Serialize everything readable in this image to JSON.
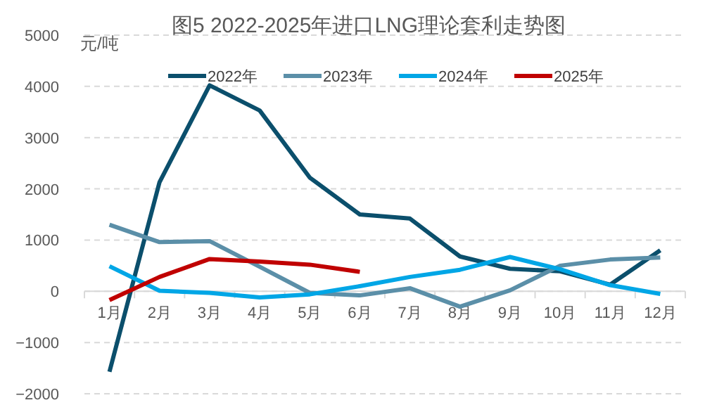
{
  "chart_data": {
    "type": "line",
    "title": "图5  2022-2025年进口LNG理论套利走势图",
    "ylabel": "元/吨",
    "categories": [
      "1月",
      "2月",
      "3月",
      "4月",
      "5月",
      "6月",
      "7月",
      "8月",
      "9月",
      "10月",
      "11月",
      "12月"
    ],
    "series": [
      {
        "name": "2022年",
        "color": "#0b4f6c",
        "values": [
          -1570,
          2130,
          4020,
          3530,
          2220,
          1500,
          1420,
          680,
          440,
          390,
          130,
          800
        ]
      },
      {
        "name": "2023年",
        "color": "#5b8fa8",
        "values": [
          1300,
          960,
          980,
          480,
          -30,
          -80,
          60,
          -300,
          20,
          500,
          620,
          660
        ]
      },
      {
        "name": "2024年",
        "color": "#00a6e6",
        "values": [
          490,
          10,
          -30,
          -120,
          -60,
          100,
          280,
          420,
          670,
          430,
          120,
          -50
        ]
      },
      {
        "name": "2025年",
        "color": "#c00000",
        "values": [
          -170,
          280,
          630,
          580,
          520,
          380,
          null,
          null,
          null,
          null,
          null,
          null
        ]
      }
    ],
    "ylim": [
      -2000,
      5000
    ],
    "yticks": [
      -2000,
      -1000,
      0,
      1000,
      2000,
      3000,
      4000,
      5000
    ],
    "grid": "y",
    "legend": "top"
  }
}
